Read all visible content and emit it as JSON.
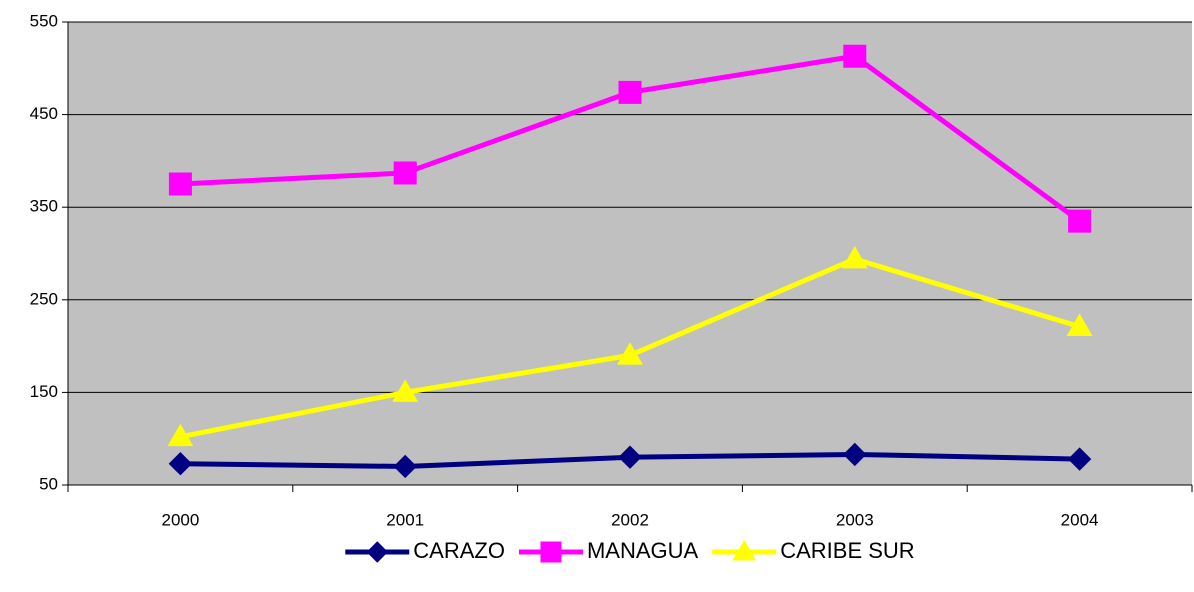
{
  "chart_data": {
    "type": "line",
    "categories": [
      "2000",
      "2001",
      "2002",
      "2003",
      "2004"
    ],
    "series": [
      {
        "name": "CARAZO",
        "color": "#000080",
        "marker": "diamond",
        "values": [
          73,
          70,
          80,
          83,
          78
        ]
      },
      {
        "name": "MANAGUA",
        "color": "#ff00ff",
        "marker": "square",
        "values": [
          375,
          387,
          474,
          513,
          335
        ]
      },
      {
        "name": "CARIBE SUR",
        "color": "#ffff00",
        "marker": "triangle",
        "values": [
          102,
          150,
          190,
          294,
          221
        ]
      }
    ],
    "ylim": [
      50,
      550
    ],
    "yticks": [
      50,
      150,
      250,
      350,
      450,
      550
    ],
    "grid": true,
    "plot_background": "#c0c0c0",
    "legend": "bottom"
  }
}
